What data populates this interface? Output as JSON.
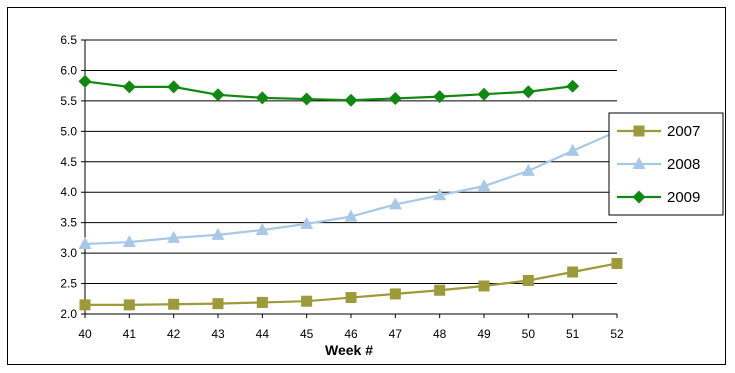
{
  "chart_data": {
    "type": "line",
    "title": "",
    "xlabel": "Week #",
    "ylabel": "",
    "x": [
      40,
      41,
      42,
      43,
      44,
      45,
      46,
      47,
      48,
      49,
      50,
      51,
      52
    ],
    "ylim": [
      2.0,
      6.5
    ],
    "yticks": [
      "2.0",
      "2.5",
      "3.0",
      "3.5",
      "4.0",
      "4.5",
      "5.0",
      "5.5",
      "6.0",
      "6.5"
    ],
    "grid": "horizontal",
    "legend_position": "right",
    "series": [
      {
        "name": "2007",
        "color": "#9c9a3a",
        "marker": "square",
        "values": [
          2.15,
          2.15,
          2.16,
          2.17,
          2.19,
          2.21,
          2.27,
          2.33,
          2.39,
          2.46,
          2.55,
          2.69,
          2.83
        ]
      },
      {
        "name": "2008",
        "color": "#a8c8e8",
        "marker": "triangle",
        "values": [
          3.15,
          3.18,
          3.25,
          3.3,
          3.38,
          3.48,
          3.6,
          3.8,
          3.95,
          4.1,
          4.35,
          4.68,
          5.0
        ]
      },
      {
        "name": "2009",
        "color": "#118811",
        "marker": "diamond",
        "values": [
          5.82,
          5.73,
          5.73,
          5.6,
          5.55,
          5.53,
          5.51,
          5.54,
          5.57,
          5.61,
          5.65,
          5.74,
          null
        ]
      }
    ]
  }
}
